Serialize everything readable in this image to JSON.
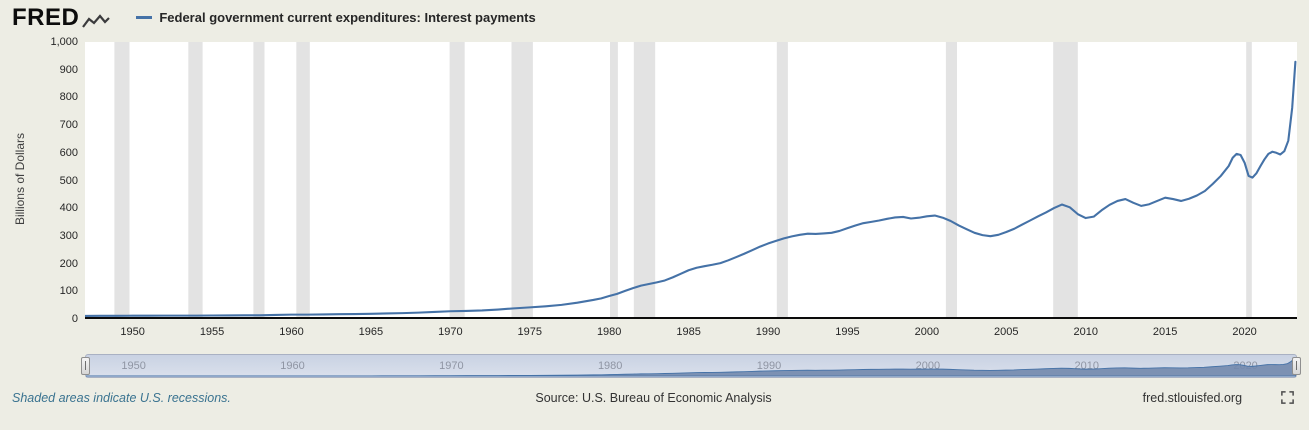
{
  "colors": {
    "page_bg": "#edede4",
    "line": "#4572a7",
    "recession": "#e3e3e3",
    "link": "#3a7390",
    "brush_area": "#7288ad"
  },
  "header": {
    "logo": "FRED",
    "legend_label": "Federal government current expenditures: Interest payments"
  },
  "footer": {
    "recession_note": "Shaded areas indicate U.S. recessions.",
    "source": "Source: U.S. Bureau of Economic Analysis",
    "site": "fred.stlouisfed.org"
  },
  "chart_data": {
    "type": "line",
    "title": "Federal government current expenditures: Interest payments",
    "xlabel": "",
    "ylabel": "Billions of Dollars",
    "xlim": [
      1947,
      2023.3
    ],
    "ylim": [
      0,
      1000
    ],
    "y_ticks": [
      0,
      100,
      200,
      300,
      400,
      500,
      600,
      700,
      800,
      900,
      1000
    ],
    "x_ticks": [
      1950,
      1955,
      1960,
      1965,
      1970,
      1975,
      1980,
      1985,
      1990,
      1995,
      2000,
      2005,
      2010,
      2015,
      2020
    ],
    "brush_ticks": [
      1950,
      1960,
      1970,
      1980,
      1990,
      2000,
      2010,
      2020
    ],
    "grid": false,
    "legend_position": "top-left",
    "recessions": [
      [
        1948.85,
        1949.8
      ],
      [
        1953.5,
        1954.4
      ],
      [
        1957.6,
        1958.3
      ],
      [
        1960.3,
        1961.15
      ],
      [
        1969.95,
        1970.9
      ],
      [
        1973.85,
        1975.2
      ],
      [
        1980.05,
        1980.55
      ],
      [
        1981.55,
        1982.9
      ],
      [
        1990.55,
        1991.25
      ],
      [
        2001.2,
        2001.9
      ],
      [
        2007.95,
        2009.5
      ],
      [
        2020.1,
        2020.45
      ]
    ],
    "series": [
      {
        "name": "Federal government current expenditures: Interest payments",
        "units": "Billions of Dollars",
        "points": [
          [
            1947,
            4
          ],
          [
            1948,
            4.3
          ],
          [
            1949,
            4.5
          ],
          [
            1950,
            4.6
          ],
          [
            1951,
            4.7
          ],
          [
            1952,
            4.9
          ],
          [
            1953,
            5.2
          ],
          [
            1954,
            5.1
          ],
          [
            1955,
            5.3
          ],
          [
            1956,
            5.6
          ],
          [
            1957,
            6
          ],
          [
            1958,
            6.3
          ],
          [
            1959,
            7.5
          ],
          [
            1960,
            8.6
          ],
          [
            1961,
            8.8
          ],
          [
            1962,
            9.4
          ],
          [
            1963,
            10
          ],
          [
            1964,
            10.8
          ],
          [
            1965,
            11.6
          ],
          [
            1966,
            12.9
          ],
          [
            1967,
            14.2
          ],
          [
            1968,
            16
          ],
          [
            1969,
            18.3
          ],
          [
            1970,
            20.8
          ],
          [
            1971,
            22
          ],
          [
            1972,
            23.8
          ],
          [
            1973,
            27
          ],
          [
            1974,
            31.5
          ],
          [
            1975,
            35
          ],
          [
            1976,
            39
          ],
          [
            1977,
            44
          ],
          [
            1978,
            52
          ],
          [
            1979,
            62
          ],
          [
            1979.5,
            68
          ],
          [
            1980,
            76
          ],
          [
            1980.5,
            84
          ],
          [
            1981,
            95
          ],
          [
            1981.5,
            105
          ],
          [
            1982,
            114
          ],
          [
            1982.5,
            120
          ],
          [
            1983,
            126
          ],
          [
            1983.5,
            133
          ],
          [
            1984,
            144
          ],
          [
            1984.5,
            157
          ],
          [
            1985,
            170
          ],
          [
            1985.5,
            179
          ],
          [
            1986,
            185
          ],
          [
            1986.5,
            190
          ],
          [
            1987,
            196
          ],
          [
            1987.5,
            206
          ],
          [
            1988,
            218
          ],
          [
            1988.5,
            230
          ],
          [
            1989,
            243
          ],
          [
            1989.5,
            256
          ],
          [
            1990,
            267
          ],
          [
            1990.5,
            277
          ],
          [
            1991,
            286
          ],
          [
            1991.5,
            293
          ],
          [
            1992,
            299
          ],
          [
            1992.5,
            303
          ],
          [
            1993,
            302
          ],
          [
            1993.5,
            304
          ],
          [
            1994,
            306
          ],
          [
            1994.5,
            313
          ],
          [
            1995,
            323
          ],
          [
            1995.5,
            333
          ],
          [
            1996,
            341
          ],
          [
            1996.5,
            346
          ],
          [
            1997,
            351
          ],
          [
            1997.5,
            357
          ],
          [
            1998,
            362
          ],
          [
            1998.5,
            364
          ],
          [
            1999,
            358
          ],
          [
            1999.5,
            361
          ],
          [
            2000,
            366
          ],
          [
            2000.5,
            369
          ],
          [
            2001,
            361
          ],
          [
            2001.5,
            349
          ],
          [
            2002,
            333
          ],
          [
            2002.5,
            319
          ],
          [
            2003,
            306
          ],
          [
            2003.5,
            298
          ],
          [
            2004,
            294
          ],
          [
            2004.5,
            299
          ],
          [
            2005,
            309
          ],
          [
            2005.5,
            321
          ],
          [
            2006,
            336
          ],
          [
            2006.5,
            351
          ],
          [
            2007,
            366
          ],
          [
            2007.5,
            380
          ],
          [
            2008,
            396
          ],
          [
            2008.5,
            409
          ],
          [
            2009,
            399
          ],
          [
            2009.5,
            374
          ],
          [
            2010,
            360
          ],
          [
            2010.5,
            365
          ],
          [
            2011,
            388
          ],
          [
            2011.5,
            408
          ],
          [
            2012,
            422
          ],
          [
            2012.5,
            429
          ],
          [
            2013,
            415
          ],
          [
            2013.5,
            404
          ],
          [
            2014,
            410
          ],
          [
            2014.5,
            422
          ],
          [
            2015,
            434
          ],
          [
            2015.5,
            429
          ],
          [
            2016,
            422
          ],
          [
            2016.5,
            430
          ],
          [
            2017,
            442
          ],
          [
            2017.5,
            458
          ],
          [
            2018,
            484
          ],
          [
            2018.5,
            513
          ],
          [
            2019,
            549
          ],
          [
            2019.25,
            579
          ],
          [
            2019.5,
            593
          ],
          [
            2019.75,
            589
          ],
          [
            2020,
            561
          ],
          [
            2020.25,
            513
          ],
          [
            2020.5,
            507
          ],
          [
            2020.75,
            523
          ],
          [
            2021,
            549
          ],
          [
            2021.25,
            573
          ],
          [
            2021.5,
            593
          ],
          [
            2021.75,
            601
          ],
          [
            2022,
            597
          ],
          [
            2022.25,
            591
          ],
          [
            2022.5,
            603
          ],
          [
            2022.75,
            641
          ],
          [
            2023,
            761
          ],
          [
            2023.2,
            928
          ]
        ]
      }
    ]
  }
}
